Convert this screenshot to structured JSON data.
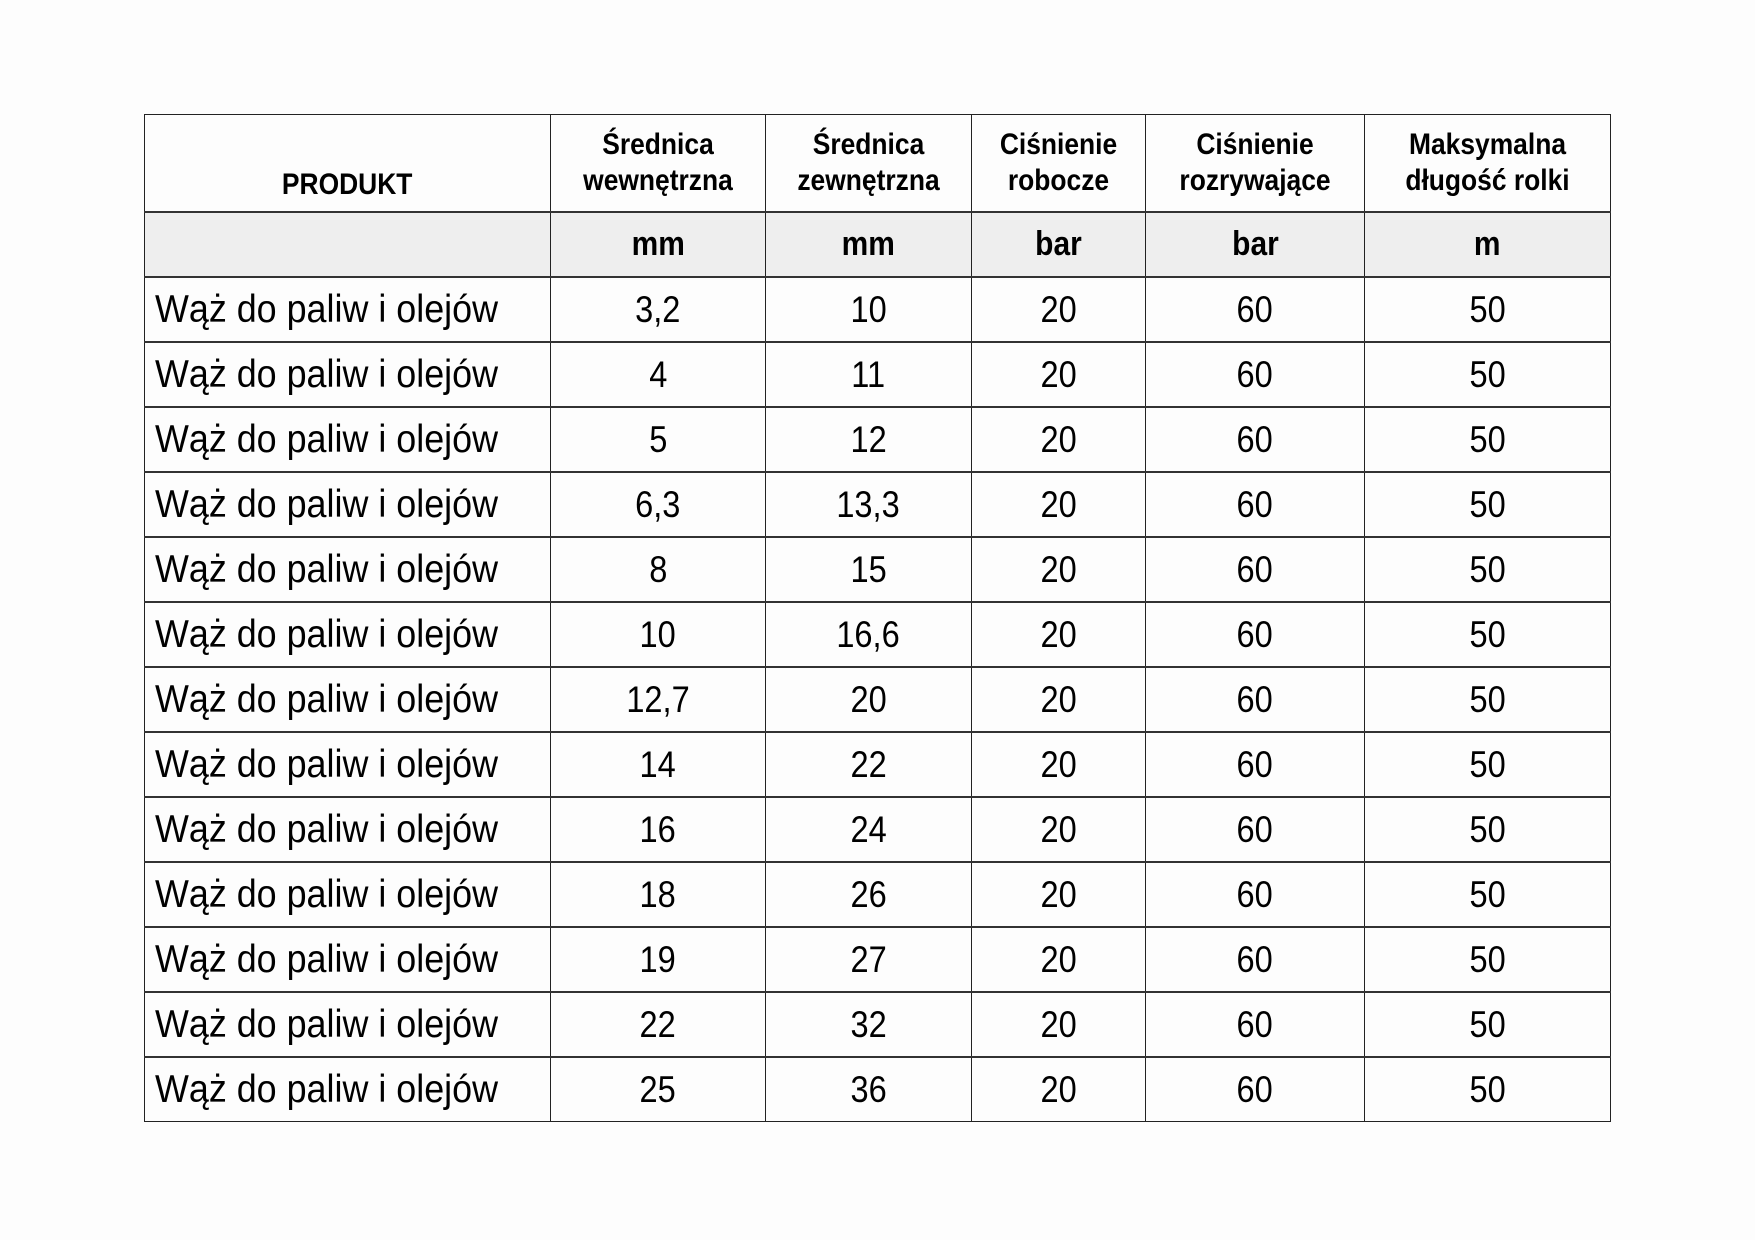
{
  "headers": [
    "PRODUKT",
    "Średnica wewnętrzna",
    "Średnica zewnętrzna",
    "Ciśnienie robocze",
    "Ciśnienie rozrywające",
    "Maksymalna długość rolki"
  ],
  "units": [
    "",
    "mm",
    "mm",
    "bar",
    "bar",
    "m"
  ],
  "rows": [
    [
      "Wąż do paliw i olejów",
      "3,2",
      "10",
      "20",
      "60",
      "50"
    ],
    [
      "Wąż do paliw i olejów",
      "4",
      "11",
      "20",
      "60",
      "50"
    ],
    [
      "Wąż do paliw i olejów",
      "5",
      "12",
      "20",
      "60",
      "50"
    ],
    [
      "Wąż do paliw i olejów",
      "6,3",
      "13,3",
      "20",
      "60",
      "50"
    ],
    [
      "Wąż do paliw i olejów",
      "8",
      "15",
      "20",
      "60",
      "50"
    ],
    [
      "Wąż do paliw i olejów",
      "10",
      "16,6",
      "20",
      "60",
      "50"
    ],
    [
      "Wąż do paliw i olejów",
      "12,7",
      "20",
      "20",
      "60",
      "50"
    ],
    [
      "Wąż do paliw i olejów",
      "14",
      "22",
      "20",
      "60",
      "50"
    ],
    [
      "Wąż do paliw i olejów",
      "16",
      "24",
      "20",
      "60",
      "50"
    ],
    [
      "Wąż do paliw i olejów",
      "18",
      "26",
      "20",
      "60",
      "50"
    ],
    [
      "Wąż do paliw i olejów",
      "19",
      "27",
      "20",
      "60",
      "50"
    ],
    [
      "Wąż do paliw i olejów",
      "22",
      "32",
      "20",
      "60",
      "50"
    ],
    [
      "Wąż do paliw i olejów",
      "25",
      "36",
      "20",
      "60",
      "50"
    ]
  ]
}
